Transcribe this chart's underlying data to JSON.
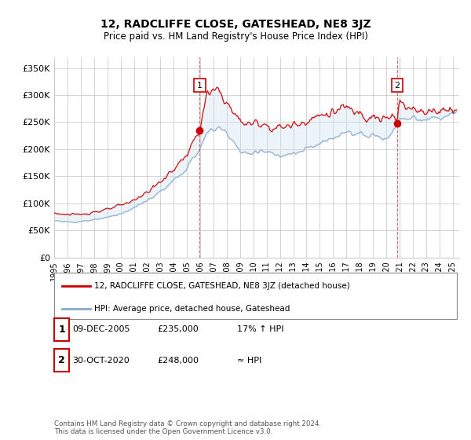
{
  "title": "12, RADCLIFFE CLOSE, GATESHEAD, NE8 3JZ",
  "subtitle": "Price paid vs. HM Land Registry's House Price Index (HPI)",
  "ylabel_ticks": [
    "£0",
    "£50K",
    "£100K",
    "£150K",
    "£200K",
    "£250K",
    "£300K",
    "£350K"
  ],
  "ylabel_values": [
    0,
    50000,
    100000,
    150000,
    200000,
    250000,
    300000,
    350000
  ],
  "ylim": [
    0,
    370000
  ],
  "xlim_start": 1995.0,
  "xlim_end": 2025.5,
  "red_line_color": "#cc0000",
  "blue_line_color": "#88aacc",
  "fill_color": "#cce0f0",
  "marker1_date": 2005.95,
  "marker1_value": 235000,
  "marker1_label": "1",
  "marker2_date": 2020.83,
  "marker2_value": 248000,
  "marker2_label": "2",
  "legend_entries": [
    "12, RADCLIFFE CLOSE, GATESHEAD, NE8 3JZ (detached house)",
    "HPI: Average price, detached house, Gateshead"
  ],
  "table_rows": [
    {
      "num": "1",
      "date": "09-DEC-2005",
      "price": "£235,000",
      "hpi": "17% ↑ HPI"
    },
    {
      "num": "2",
      "date": "30-OCT-2020",
      "price": "£248,000",
      "hpi": "≈ HPI"
    }
  ],
  "footnote": "Contains HM Land Registry data © Crown copyright and database right 2024.\nThis data is licensed under the Open Government Licence v3.0.",
  "background_color": "#ffffff",
  "grid_color": "#cccccc"
}
